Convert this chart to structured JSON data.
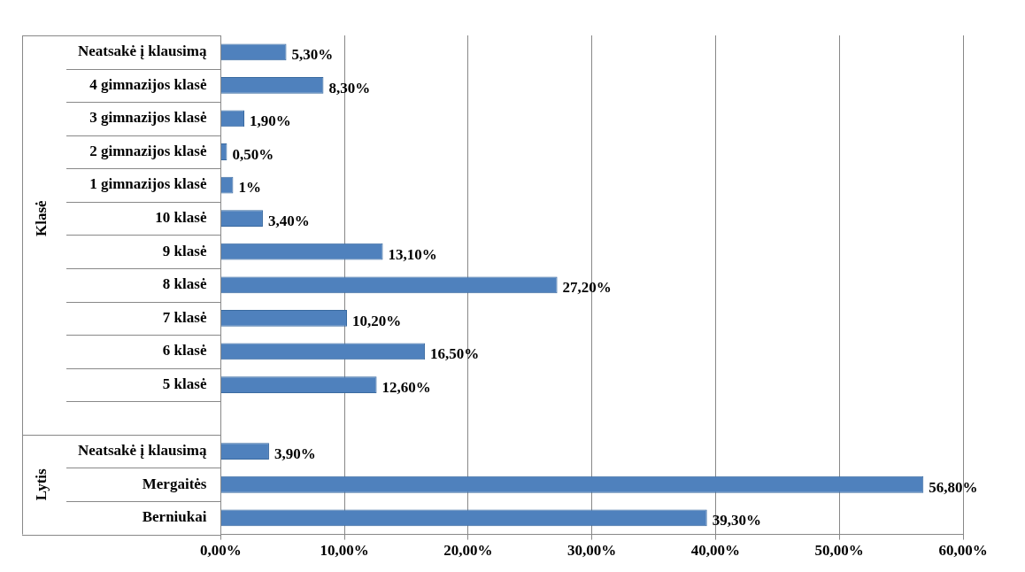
{
  "chart_data": {
    "type": "bar",
    "orientation": "horizontal",
    "categories": [
      "Neatsakė į klausimą",
      "4 gimnazijos klasė",
      "3 gimnazijos klasė",
      "2 gimnazijos klasė",
      "1 gimnazijos klasė",
      "10 klasė",
      "9 klasė",
      "8 klasė",
      "7 klasė",
      "6 klasė",
      "5 klasė",
      null,
      "Neatsakė į klausimą",
      "Mergaitės",
      "Berniukai"
    ],
    "values": [
      5.3,
      8.3,
      1.9,
      0.5,
      1,
      3.4,
      13.1,
      27.2,
      10.2,
      16.5,
      12.6,
      null,
      3.9,
      56.8,
      39.3
    ],
    "value_labels": [
      "5,30%",
      "8,30%",
      "1,90%",
      "0,50%",
      "1%",
      "3,40%",
      "13,10%",
      "27,20%",
      "10,20%",
      "16,50%",
      "12,60%",
      null,
      "3,90%",
      "56,80%",
      "39,30%"
    ],
    "color": "#4f81bd",
    "xlim": [
      0,
      60
    ],
    "xticks": [
      {
        "value": 0,
        "label": "0,00%"
      },
      {
        "value": 10,
        "label": "10,00%"
      },
      {
        "value": 20,
        "label": "20,00%"
      },
      {
        "value": 30,
        "label": "30,00%"
      },
      {
        "value": 40,
        "label": "40,00%"
      },
      {
        "value": 50,
        "label": "50,00%"
      },
      {
        "value": 60,
        "label": "60,00%"
      }
    ],
    "grid": "x",
    "annotations": [
      "Klasė",
      "Lytis"
    ]
  }
}
